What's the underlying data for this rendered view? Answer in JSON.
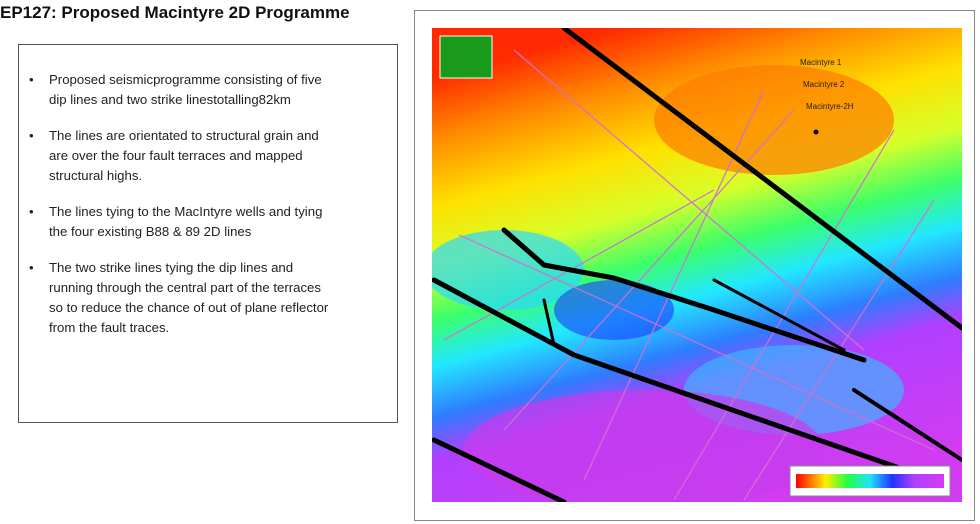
{
  "header": {
    "title": "EP127: Proposed Macintyre 2D  Programme"
  },
  "bullets": [
    [
      "Proposed seismicprogramme consisting of five",
      "dip lines and two strike linestotalling82km"
    ],
    [
      "The lines are orientated to structural grain and",
      "are over the four fault terraces and mapped",
      "structural highs."
    ],
    [
      "The lines tying to the MacIntyre wells and tying",
      "the four existing B88 & 89 2D lines"
    ],
    [
      "The two strike lines tying the dip lines and",
      "running through the central part of the terraces",
      "so to reduce the chance of out of plane reflector",
      "from the fault traces."
    ]
  ],
  "map": {
    "wells": [
      "Macintyre 1",
      "Macintyre 2",
      "Macintyre-2H"
    ]
  }
}
